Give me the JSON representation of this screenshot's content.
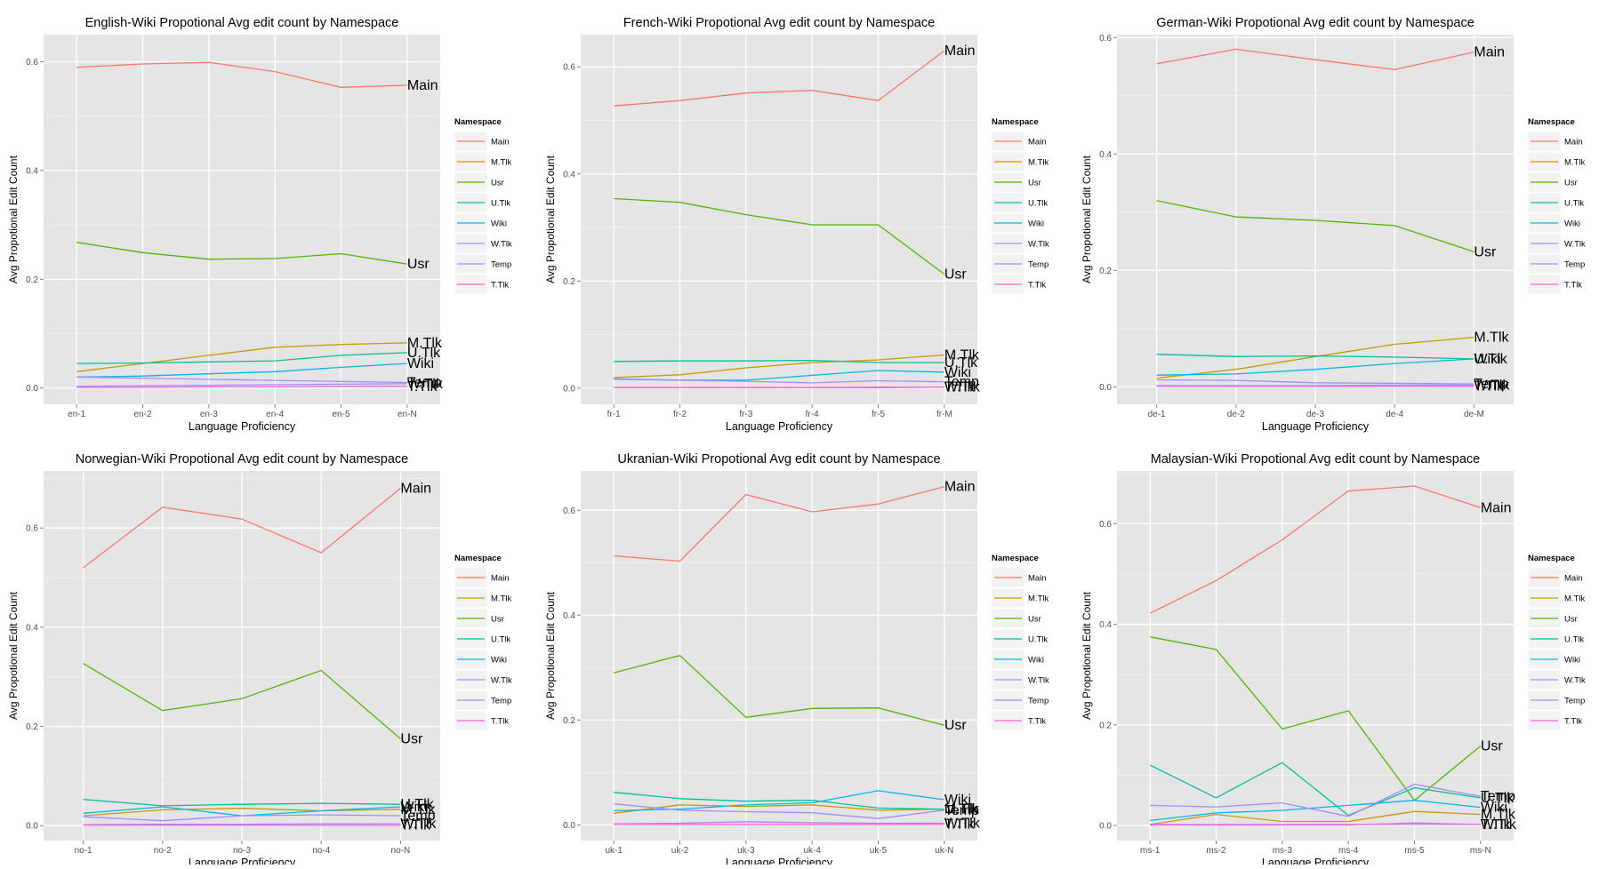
{
  "chart_data": [
    {
      "type": "line",
      "title": "English-Wiki Propotional Avg edit count by Namespace",
      "xlabel": "Language Proficiency",
      "ylabel": "Avg Propotional Edit Count",
      "categories": [
        "en-1",
        "en-2",
        "en-3",
        "en-4",
        "en-5",
        "en-N"
      ],
      "ylim": [
        -0.03,
        0.65
      ],
      "yticks": [
        "0.0",
        "0.2",
        "0.4",
        "0.6"
      ],
      "grid": true,
      "legend_position": "right",
      "legend_title": "Namespace",
      "series": [
        {
          "name": "Main",
          "color": "#F8766D",
          "values": [
            0.59,
            0.596,
            0.599,
            0.582,
            0.553,
            0.557
          ]
        },
        {
          "name": "M.Tlk",
          "color": "#C49A00",
          "values": [
            0.03,
            0.045,
            0.06,
            0.075,
            0.08,
            0.083
          ]
        },
        {
          "name": "Usr",
          "color": "#53B400",
          "values": [
            0.268,
            0.249,
            0.237,
            0.238,
            0.247,
            0.228
          ]
        },
        {
          "name": "U.Tlk",
          "color": "#00C094",
          "values": [
            0.045,
            0.046,
            0.048,
            0.05,
            0.06,
            0.065
          ]
        },
        {
          "name": "Wiki",
          "color": "#00B6EB",
          "values": [
            0.02,
            0.022,
            0.026,
            0.03,
            0.038,
            0.045
          ]
        },
        {
          "name": "W.Tlk",
          "color": "#A58AFF",
          "values": [
            0.003,
            0.004,
            0.005,
            0.006,
            0.007,
            0.008
          ]
        },
        {
          "name": "Temp",
          "color": "#A58AFF",
          "values": [
            0.02,
            0.018,
            0.016,
            0.014,
            0.012,
            0.01
          ]
        },
        {
          "name": "T.Tlk",
          "color": "#FB61D7",
          "values": [
            0.001,
            0.001,
            0.002,
            0.002,
            0.003,
            0.003
          ]
        }
      ],
      "end_labels": [
        "Main",
        "M.Tlk",
        "Usr",
        "U.Tlk",
        "Wiki",
        "W.Tlk",
        "Temp",
        "T.Tlk"
      ]
    },
    {
      "type": "line",
      "title": "French-Wiki Propotional Avg edit count by Namespace",
      "xlabel": "Language Proficiency",
      "ylabel": "Avg Propotional Edit Count",
      "categories": [
        "fr-1",
        "fr-2",
        "fr-3",
        "fr-4",
        "fr-5",
        "fr-M"
      ],
      "ylim": [
        -0.03,
        0.66
      ],
      "yticks": [
        "0.0",
        "0.2",
        "0.4",
        "0.6"
      ],
      "grid": true,
      "legend_position": "right",
      "legend_title": "Namespace",
      "series": [
        {
          "name": "Main",
          "color": "#F8766D",
          "values": [
            0.527,
            0.537,
            0.551,
            0.556,
            0.537,
            0.63
          ]
        },
        {
          "name": "M.Tlk",
          "color": "#C49A00",
          "values": [
            0.02,
            0.025,
            0.038,
            0.048,
            0.053,
            0.062
          ]
        },
        {
          "name": "Usr",
          "color": "#53B400",
          "values": [
            0.354,
            0.347,
            0.324,
            0.305,
            0.305,
            0.213
          ]
        },
        {
          "name": "U.Tlk",
          "color": "#00C094",
          "values": [
            0.05,
            0.051,
            0.051,
            0.052,
            0.048,
            0.048
          ]
        },
        {
          "name": "Wiki",
          "color": "#00B6EB",
          "values": [
            0.017,
            0.015,
            0.015,
            0.024,
            0.033,
            0.03
          ]
        },
        {
          "name": "W.Tlk",
          "color": "#A58AFF",
          "values": [
            0.001,
            0.001,
            0.001,
            0.001,
            0.002,
            0.002
          ]
        },
        {
          "name": "Temp",
          "color": "#A58AFF",
          "values": [
            0.018,
            0.015,
            0.013,
            0.01,
            0.014,
            0.012
          ]
        },
        {
          "name": "T.Tlk",
          "color": "#FB61D7",
          "values": [
            0.001,
            0.001,
            0.001,
            0.001,
            0.001,
            0.002
          ]
        }
      ],
      "end_labels": [
        "Main",
        "M.Tlk",
        "Usr",
        "U.Tlk",
        "Wiki",
        "W.Tlk",
        "Temp",
        "T.Tlk"
      ]
    },
    {
      "type": "line",
      "title": "German-Wiki Propotional Avg edit count by Namespace",
      "xlabel": "Language Proficiency",
      "ylabel": "Avg Propotional Edit Count",
      "categories": [
        "de-1",
        "de-2",
        "de-3",
        "de-4",
        "de-M"
      ],
      "ylim": [
        -0.03,
        0.605
      ],
      "yticks": [
        "0.0",
        "0.2",
        "0.4",
        "0.6"
      ],
      "grid": true,
      "legend_position": "right",
      "legend_title": "Namespace",
      "series": [
        {
          "name": "Main",
          "color": "#F8766D",
          "values": [
            0.555,
            0.58,
            0.562,
            0.545,
            0.575
          ]
        },
        {
          "name": "M.Tlk",
          "color": "#C49A00",
          "values": [
            0.015,
            0.03,
            0.052,
            0.073,
            0.085
          ]
        },
        {
          "name": "Usr",
          "color": "#53B400",
          "values": [
            0.32,
            0.292,
            0.286,
            0.277,
            0.232
          ]
        },
        {
          "name": "U.Tlk",
          "color": "#00C094",
          "values": [
            0.056,
            0.052,
            0.053,
            0.051,
            0.048
          ]
        },
        {
          "name": "Wiki",
          "color": "#00B6EB",
          "values": [
            0.02,
            0.022,
            0.03,
            0.04,
            0.048
          ]
        },
        {
          "name": "W.Tlk",
          "color": "#A58AFF",
          "values": [
            0.002,
            0.002,
            0.002,
            0.003,
            0.003
          ]
        },
        {
          "name": "Temp",
          "color": "#A58AFF",
          "values": [
            0.012,
            0.011,
            0.007,
            0.006,
            0.005
          ]
        },
        {
          "name": "T.Tlk",
          "color": "#FB61D7",
          "values": [
            0.001,
            0.001,
            0.001,
            0.001,
            0.001
          ]
        }
      ],
      "end_labels": [
        "Main",
        "M.Tlk",
        "Usr",
        "U.Tlk",
        "Wiki",
        "W.Tlk",
        "Temp",
        "T.Tlk"
      ]
    },
    {
      "type": "line",
      "title": "Norwegian-Wiki Propotional Avg edit count by Namespace",
      "xlabel": "Language Proficiency",
      "ylabel": "Avg Propotional Edit Count",
      "categories": [
        "no-1",
        "no-2",
        "no-3",
        "no-4",
        "no-N"
      ],
      "ylim": [
        -0.03,
        0.715
      ],
      "yticks": [
        "0.0",
        "0.2",
        "0.4",
        "0.6"
      ],
      "grid": true,
      "legend_position": "right",
      "legend_title": "Namespace",
      "series": [
        {
          "name": "Main",
          "color": "#F8766D",
          "values": [
            0.52,
            0.642,
            0.618,
            0.55,
            0.68
          ]
        },
        {
          "name": "M.Tlk",
          "color": "#C49A00",
          "values": [
            0.02,
            0.032,
            0.035,
            0.03,
            0.033
          ]
        },
        {
          "name": "Usr",
          "color": "#53B400",
          "values": [
            0.327,
            0.232,
            0.256,
            0.313,
            0.175
          ]
        },
        {
          "name": "U.Tlk",
          "color": "#00C094",
          "values": [
            0.053,
            0.04,
            0.043,
            0.045,
            0.043
          ]
        },
        {
          "name": "Wiki",
          "color": "#00B6EB",
          "values": [
            0.025,
            0.038,
            0.02,
            0.03,
            0.038
          ]
        },
        {
          "name": "W.Tlk",
          "color": "#A58AFF",
          "values": [
            0.002,
            0.003,
            0.003,
            0.004,
            0.004
          ]
        },
        {
          "name": "Temp",
          "color": "#A58AFF",
          "values": [
            0.018,
            0.01,
            0.02,
            0.022,
            0.02
          ]
        },
        {
          "name": "T.Tlk",
          "color": "#FB61D7",
          "values": [
            0.001,
            0.001,
            0.001,
            0.001,
            0.001
          ]
        }
      ],
      "end_labels": [
        "Main",
        "M.Tlk",
        "Usr",
        "U.Tlk",
        "Wiki",
        "W.Tlk",
        "Temp",
        "T.Tlk"
      ]
    },
    {
      "type": "line",
      "title": "Ukranian-Wiki Propotional Avg edit count by Namespace",
      "xlabel": "Language Proficiency",
      "ylabel": "Avg Propotional Edit Count",
      "categories": [
        "uk-1",
        "uk-2",
        "uk-3",
        "uk-4",
        "uk-5",
        "uk-N"
      ],
      "ylim": [
        -0.03,
        0.675
      ],
      "yticks": [
        "0.0",
        "0.2",
        "0.4",
        "0.6"
      ],
      "grid": true,
      "legend_position": "right",
      "legend_title": "Namespace",
      "series": [
        {
          "name": "Main",
          "color": "#F8766D",
          "values": [
            0.513,
            0.503,
            0.63,
            0.597,
            0.612,
            0.645
          ]
        },
        {
          "name": "M.Tlk",
          "color": "#C49A00",
          "values": [
            0.022,
            0.038,
            0.035,
            0.038,
            0.028,
            0.03
          ]
        },
        {
          "name": "Usr",
          "color": "#53B400",
          "values": [
            0.29,
            0.323,
            0.205,
            0.222,
            0.223,
            0.19
          ]
        },
        {
          "name": "U.Tlk",
          "color": "#00C094",
          "values": [
            0.062,
            0.05,
            0.045,
            0.047,
            0.032,
            0.03
          ]
        },
        {
          "name": "Wiki",
          "color": "#00B6EB",
          "values": [
            0.027,
            0.03,
            0.038,
            0.042,
            0.065,
            0.048
          ]
        },
        {
          "name": "W.Tlk",
          "color": "#A58AFF",
          "values": [
            0.002,
            0.003,
            0.006,
            0.004,
            0.003,
            0.003
          ]
        },
        {
          "name": "Temp",
          "color": "#A58AFF",
          "values": [
            0.04,
            0.028,
            0.025,
            0.023,
            0.012,
            0.028
          ]
        },
        {
          "name": "T.Tlk",
          "color": "#FB61D7",
          "values": [
            0.001,
            0.001,
            0.001,
            0.001,
            0.001,
            0.001
          ]
        }
      ],
      "end_labels": [
        "Main",
        "M.Tlk",
        "Usr",
        "U.Tlk",
        "Wiki",
        "W.Tlk",
        "Temp",
        "T.Tlk"
      ]
    },
    {
      "type": "line",
      "title": "Malaysian-Wiki Propotional Avg edit count by Namespace",
      "xlabel": "Language Proficiency",
      "ylabel": "Avg Propotional Edit Count",
      "categories": [
        "ms-1",
        "ms-2",
        "ms-3",
        "ms-4",
        "ms-5",
        "ms-N"
      ],
      "ylim": [
        -0.03,
        0.705
      ],
      "yticks": [
        "0.0",
        "0.2",
        "0.4",
        "0.6"
      ],
      "grid": true,
      "legend_position": "right",
      "legend_title": "Namespace",
      "series": [
        {
          "name": "Main",
          "color": "#F8766D",
          "values": [
            0.422,
            0.487,
            0.568,
            0.665,
            0.675,
            0.632
          ]
        },
        {
          "name": "M.Tlk",
          "color": "#C49A00",
          "values": [
            0.002,
            0.022,
            0.008,
            0.008,
            0.028,
            0.022
          ]
        },
        {
          "name": "Usr",
          "color": "#53B400",
          "values": [
            0.375,
            0.35,
            0.192,
            0.228,
            0.05,
            0.158
          ]
        },
        {
          "name": "U.Tlk",
          "color": "#00C094",
          "values": [
            0.12,
            0.055,
            0.125,
            0.02,
            0.075,
            0.055
          ]
        },
        {
          "name": "Wiki",
          "color": "#00B6EB",
          "values": [
            0.01,
            0.025,
            0.03,
            0.04,
            0.05,
            0.036
          ]
        },
        {
          "name": "W.Tlk",
          "color": "#A58AFF",
          "values": [
            0.002,
            0.002,
            0.002,
            0.002,
            0.002,
            0.002
          ]
        },
        {
          "name": "Temp",
          "color": "#A58AFF",
          "values": [
            0.04,
            0.037,
            0.045,
            0.018,
            0.082,
            0.058
          ]
        },
        {
          "name": "T.Tlk",
          "color": "#FB61D7",
          "values": [
            0.001,
            0.001,
            0.001,
            0.001,
            0.005,
            0.002
          ]
        }
      ],
      "end_labels": [
        "Main",
        "M.Tlk",
        "Usr",
        "U.Tlk",
        "Wiki",
        "W.Tlk",
        "Temp",
        "T.Tlk"
      ]
    }
  ]
}
